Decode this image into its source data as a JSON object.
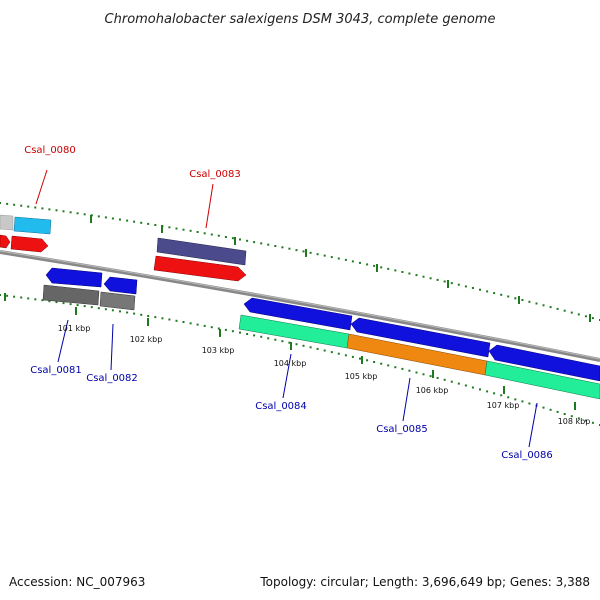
{
  "title": "Chromohalobacter salexigens DSM 3043, complete genome",
  "footer": {
    "accession": "Accession: NC_007963",
    "summary": "Topology: circular; Length: 3,696,649 bp; Genes: 3,388"
  },
  "scale_labels": [
    "101 kbp",
    "102 kbp",
    "103 kbp",
    "104 kbp",
    "105 kbp",
    "106 kbp",
    "107 kbp",
    "108 kbp"
  ],
  "gene_labels": [
    {
      "name": "Csal_0080",
      "strand": "forward"
    },
    {
      "name": "Csal_0083",
      "strand": "forward"
    },
    {
      "name": "Csal_0081",
      "strand": "reverse"
    },
    {
      "name": "Csal_0082",
      "strand": "reverse"
    },
    {
      "name": "Csal_0084",
      "strand": "reverse"
    },
    {
      "name": "Csal_0085",
      "strand": "reverse"
    },
    {
      "name": "Csal_0086",
      "strand": "reverse"
    }
  ],
  "colors": {
    "backbone": "#7a7a7a",
    "tick": "#1f7a1f",
    "red": "#ee1111",
    "blue": "#1111dd",
    "cyan": "#22bbee",
    "grey": "#666666",
    "light_grey": "#c8c8c8",
    "slate": "#4a4a8c",
    "teal": "#22ee99",
    "orange": "#ee8811",
    "label_forward": "#cc0000",
    "label_reverse": "#0000aa"
  }
}
